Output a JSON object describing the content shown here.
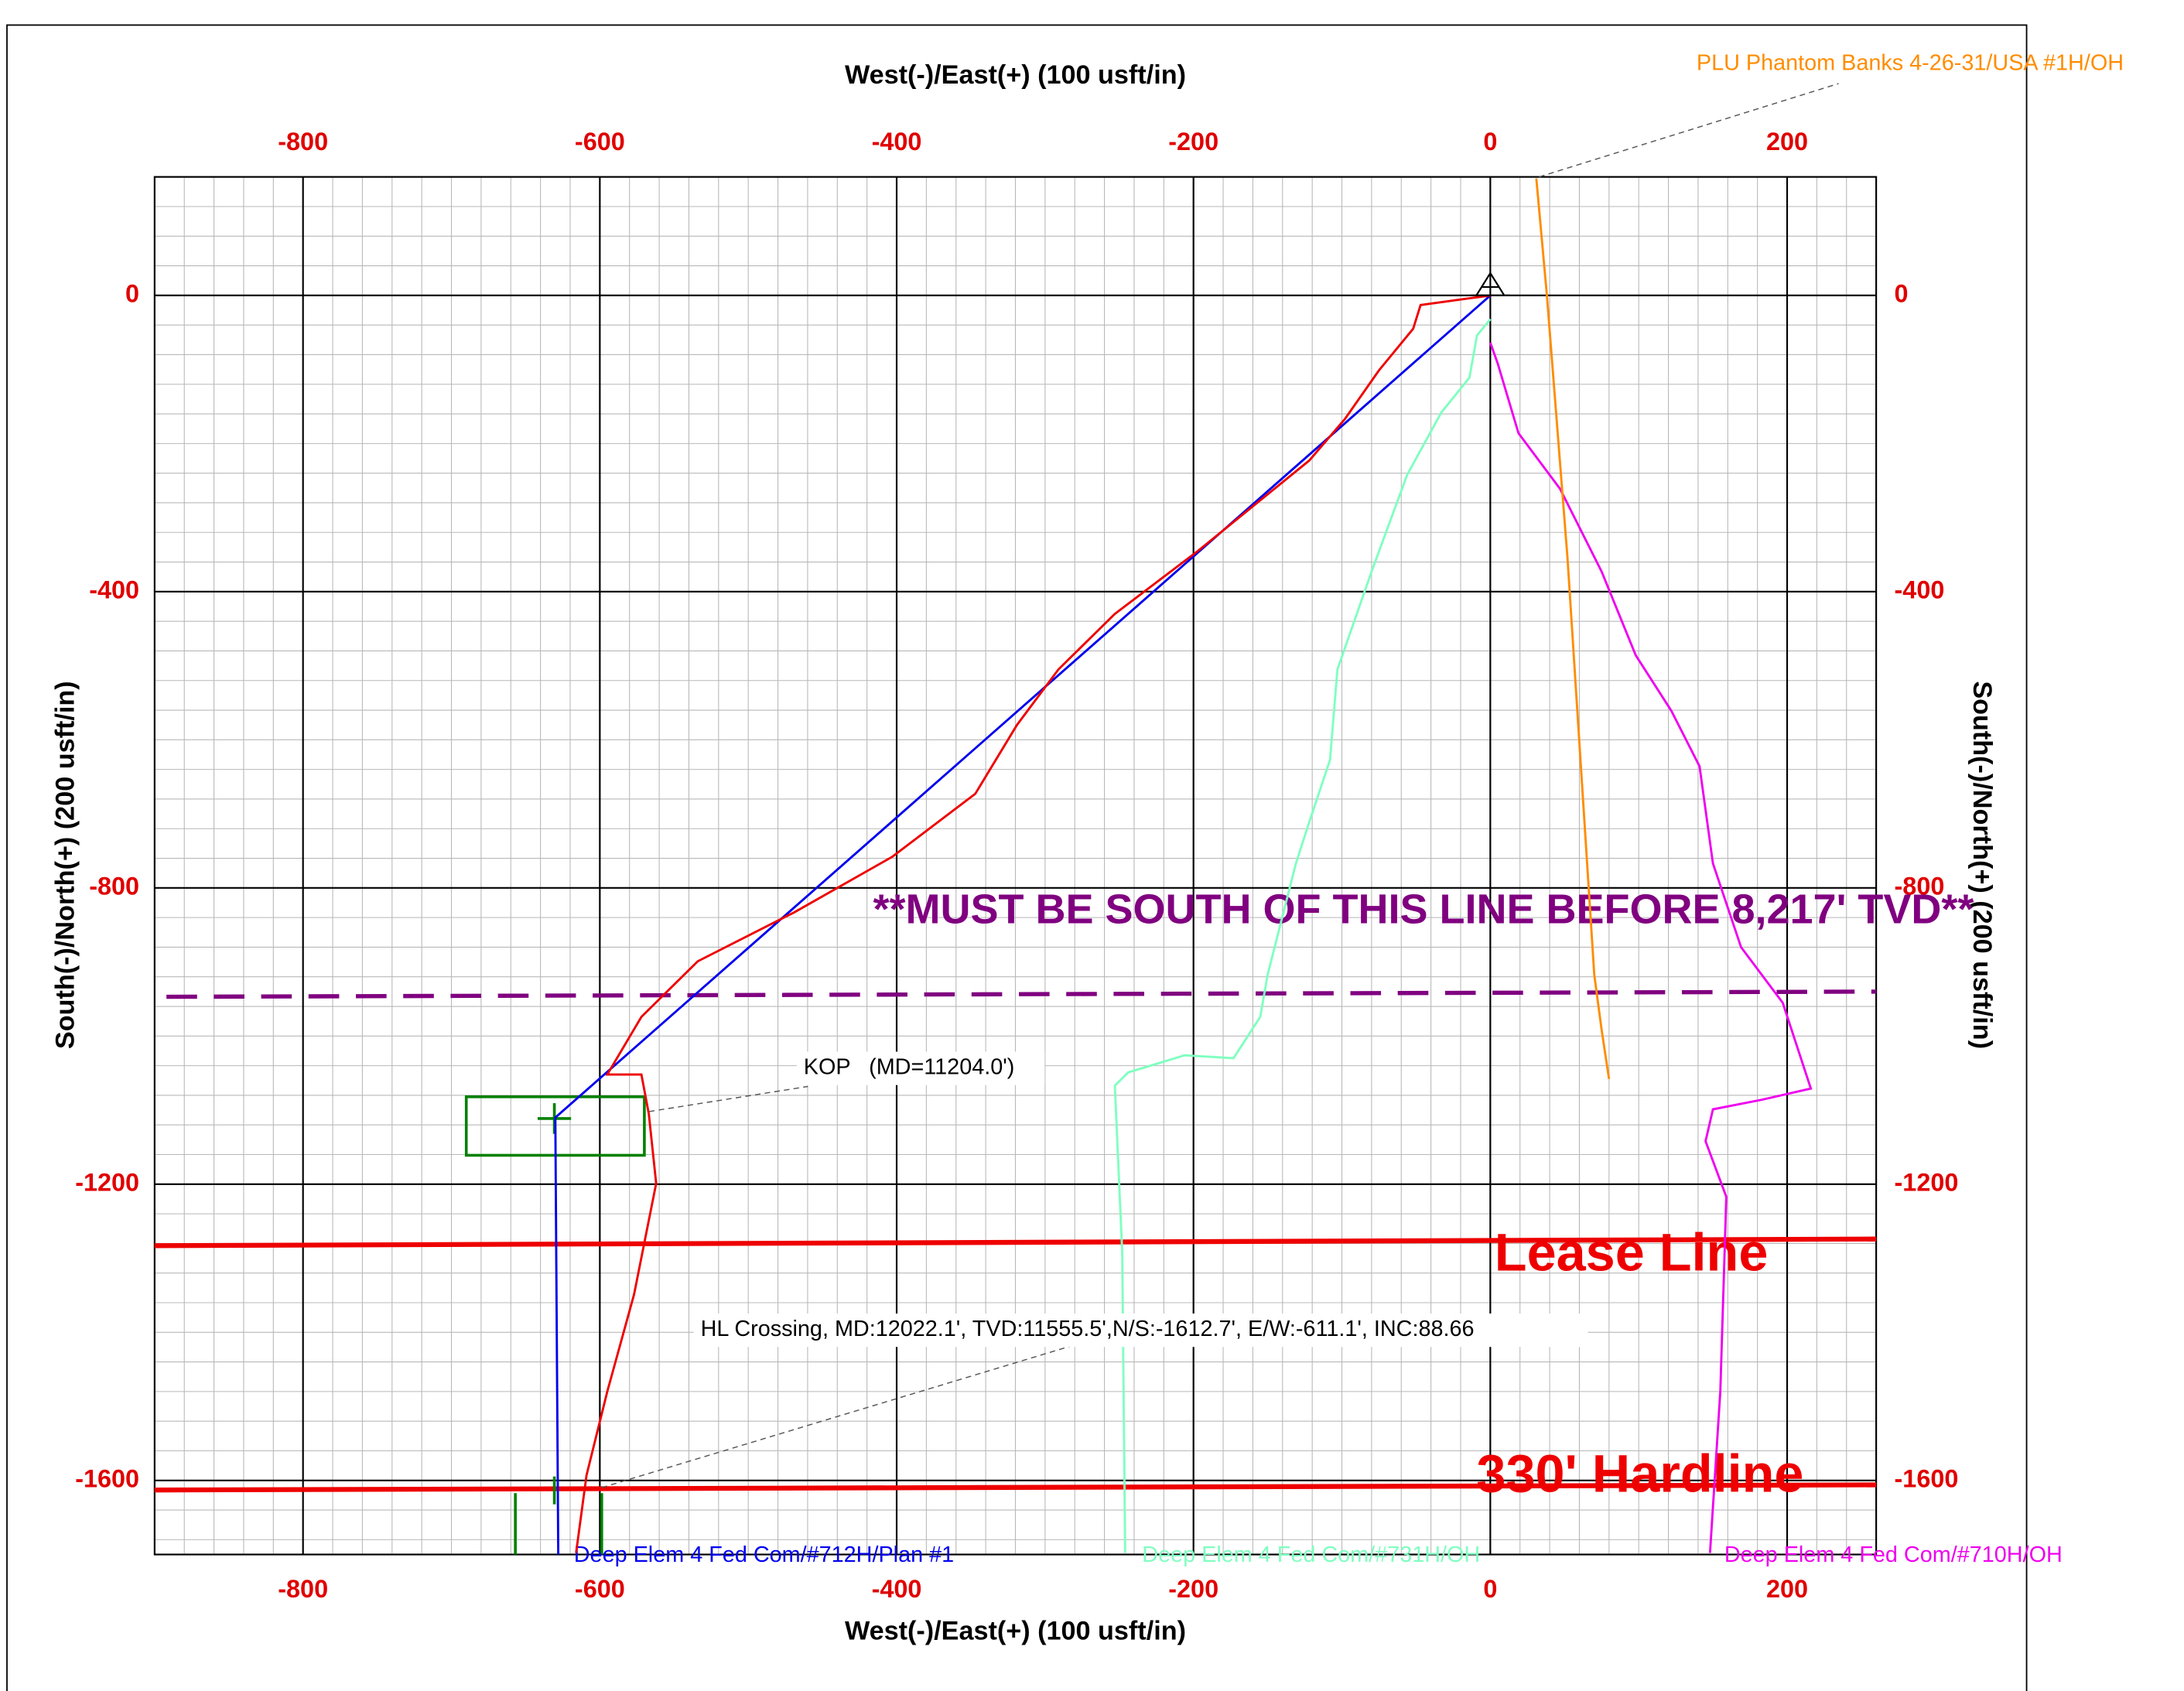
{
  "chart_data": {
    "type": "line",
    "xlabel": "West(-)/East(+) (100 usft/in)",
    "ylabel": "South(-)/North(+) (200 usft/in)",
    "xlim": [
      -900,
      260
    ],
    "ylim": [
      -1700,
      160
    ],
    "xticks": [
      -800,
      -600,
      -400,
      -200,
      0,
      200
    ],
    "yticks": [
      0,
      -400,
      -800,
      -1200,
      -1600
    ],
    "grid": true,
    "series": [
      {
        "name": "Deep Elem 4 Fed Com/#712H/Plan #1",
        "color": "#0000ee",
        "x": [
          0,
          -630,
          -628
        ],
        "values": [
          0,
          -1110,
          -1700
        ]
      },
      {
        "name": "Deep Elem 4 Fed Com/#731H/OH",
        "color": "#7fffc0",
        "x": [
          0,
          -9,
          -14,
          -33,
          -56,
          -80,
          -103,
          -108,
          -122,
          -131,
          -150,
          -155,
          -173,
          -206,
          -244,
          -253,
          -248,
          -246
        ],
        "values": [
          -32,
          -54,
          -111,
          -158,
          -242,
          -373,
          -505,
          -627,
          -711,
          -767,
          -917,
          -974,
          -1030,
          -1026,
          -1049,
          -1067,
          -1292,
          -1698
        ]
      },
      {
        "name": "Deep Elem 4 Fed Com/#710H/OH",
        "color": "#ee00ee",
        "x": [
          0,
          5,
          19,
          47,
          75,
          98,
          122,
          141,
          150,
          169,
          197,
          216,
          183,
          150,
          145,
          159,
          155,
          148
        ],
        "values": [
          -64,
          -92,
          -186,
          -261,
          -373,
          -486,
          -561,
          -636,
          -767,
          -880,
          -955,
          -1071,
          -1086,
          -1099,
          -1142,
          -1217,
          -1480,
          -1698
        ]
      },
      {
        "name": "PLU Phantom Banks 4-26-31/USA #1H/OH",
        "color": "#ff8c00",
        "x": [
          31,
          38,
          52,
          61,
          70,
          75,
          80
        ],
        "values": [
          158,
          2,
          -355,
          -636,
          -917,
          -992,
          -1058
        ]
      }
    ],
    "actual": {
      "color": "#ee0000",
      "x": [
        0,
        -47,
        -52,
        -75,
        -98,
        -122,
        -197,
        -253,
        -291,
        -319,
        -347,
        -403,
        -469,
        -534,
        -572,
        -595,
        -572,
        -567,
        -562,
        -577,
        -595,
        -609,
        -616
      ],
      "values": [
        0,
        -13,
        -45,
        -101,
        -167,
        -223,
        -345,
        -430,
        -505,
        -580,
        -673,
        -758,
        -833,
        -899,
        -974,
        -1052,
        -1052,
        -1105,
        -1199,
        -1349,
        -1480,
        -1593,
        -1698
      ]
    },
    "lines": [
      {
        "label": "Lease Line",
        "color": "#ee0000",
        "x": [
          -900,
          260
        ],
        "values": [
          -1283,
          -1274
        ]
      },
      {
        "label": "330' Hardline",
        "color": "#ee0000",
        "x": [
          -900,
          260
        ],
        "values": [
          -1613,
          -1606
        ]
      }
    ],
    "limit_line": {
      "label": "**MUST BE SOUTH OF THIS LINE BEFORE 8,217' TVD**",
      "color": "#800080",
      "x": [
        -892,
        260
      ],
      "values": [
        -947,
        -940
      ]
    },
    "target_box": {
      "color": "#008000",
      "x": [
        -690,
        -570
      ],
      "values": [
        -1082,
        -1161
      ]
    },
    "annotations": [
      "KOP   (MD=11204.0')",
      "HL Crossing, MD:12022.1', TVD:11555.5',N/S:-1612.7', E/W:-611.1', INC:88.66"
    ]
  }
}
